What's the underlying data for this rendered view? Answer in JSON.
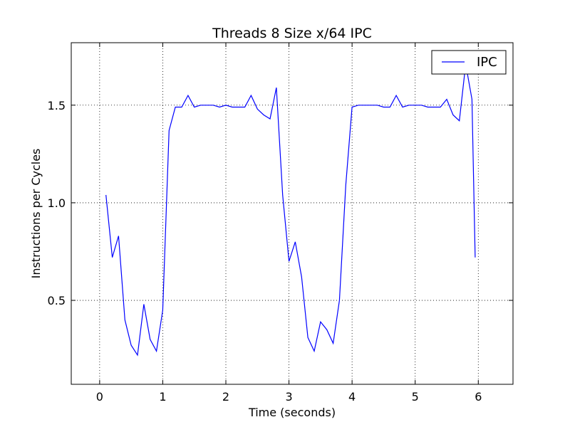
{
  "chart_data": {
    "type": "line",
    "title": "Threads 8 Size x/64 IPC",
    "xlabel": "Time (seconds)",
    "ylabel": "Instructions per Cycles",
    "xlim": [
      -0.45,
      6.55
    ],
    "ylim": [
      0.07,
      1.82
    ],
    "xticks": [
      0,
      1,
      2,
      3,
      4,
      5,
      6
    ],
    "xtick_labels": [
      "0",
      "1",
      "2",
      "3",
      "4",
      "5",
      "6"
    ],
    "yticks": [
      0.5,
      1.0,
      1.5
    ],
    "ytick_labels": [
      "0.5",
      "1.0",
      "1.5"
    ],
    "grid": true,
    "legend_position": "top-right",
    "series": [
      {
        "name": "IPC",
        "color": "#0000ff",
        "x": [
          0.1,
          0.2,
          0.3,
          0.4,
          0.5,
          0.6,
          0.7,
          0.8,
          0.9,
          1.0,
          1.1,
          1.2,
          1.3,
          1.4,
          1.5,
          1.6,
          1.7,
          1.8,
          1.9,
          2.0,
          2.1,
          2.2,
          2.3,
          2.4,
          2.5,
          2.6,
          2.7,
          2.8,
          2.9,
          3.0,
          3.1,
          3.2,
          3.3,
          3.4,
          3.5,
          3.6,
          3.7,
          3.8,
          3.9,
          4.0,
          4.1,
          4.2,
          4.3,
          4.4,
          4.5,
          4.6,
          4.7,
          4.8,
          4.9,
          5.0,
          5.1,
          5.2,
          5.3,
          5.4,
          5.5,
          5.6,
          5.7,
          5.8,
          5.9,
          5.95
        ],
        "y": [
          1.04,
          0.72,
          0.83,
          0.4,
          0.27,
          0.22,
          0.48,
          0.3,
          0.24,
          0.45,
          1.37,
          1.49,
          1.49,
          1.55,
          1.49,
          1.5,
          1.5,
          1.5,
          1.49,
          1.5,
          1.49,
          1.49,
          1.49,
          1.55,
          1.48,
          1.45,
          1.43,
          1.59,
          1.04,
          0.7,
          0.8,
          0.62,
          0.31,
          0.24,
          0.39,
          0.35,
          0.28,
          0.5,
          1.09,
          1.49,
          1.5,
          1.5,
          1.5,
          1.5,
          1.49,
          1.49,
          1.55,
          1.49,
          1.5,
          1.5,
          1.5,
          1.49,
          1.49,
          1.49,
          1.53,
          1.45,
          1.42,
          1.71,
          1.53,
          0.72
        ]
      }
    ]
  }
}
